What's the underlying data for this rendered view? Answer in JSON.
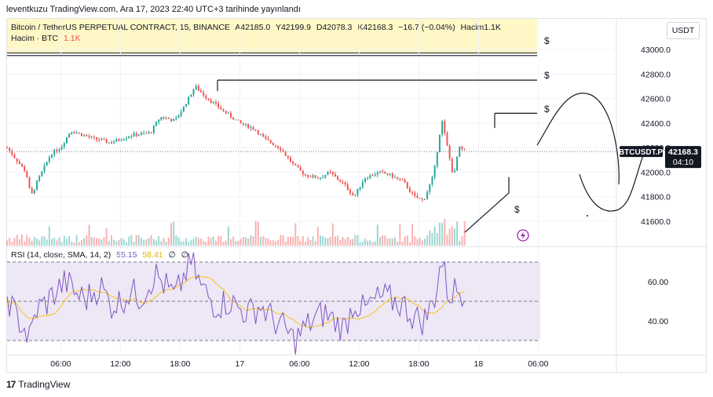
{
  "header": {
    "published": "leventkuzu TradingView.com, Ara 17, 2023 22:40 UTC+3 tarihinde yayınlandı"
  },
  "legend": {
    "title": "Bitcoin / TetherUS PERPETUAL CONTRACT, 15, BINANCE",
    "open": "A42185.0",
    "high": "Y42199.9",
    "low": "D42078.3",
    "close": "K42168.3",
    "change": "−16.7 (−0.04%)",
    "volume": "Hacim1.1K",
    "volume_label": "Hacim · BTC",
    "volume_value": "1.1K"
  },
  "currency_button": "USDT",
  "rsi": {
    "label": "RSI (14, close, SMA, 14, 2)",
    "value": "55.15",
    "sma": "58.41",
    "extra1": "∅",
    "extra2": "∅"
  },
  "footer": {
    "logo_mark": "17",
    "logo_text": "TradingView"
  },
  "colors": {
    "up": "#26a69a",
    "down": "#ef5350",
    "rsi_line": "#7e57c2",
    "rsi_sma": "#f5c518",
    "rsi_band": "#ede7f6",
    "legend_bg": "#fff7c6"
  },
  "chart_data": {
    "type": "candlestick",
    "symbol": "BTCUSDT.P",
    "interval": "15",
    "last_price": "42168.3",
    "countdown": "04:10",
    "ylim": [
      41450,
      43050
    ],
    "y_ticks": [
      "43000.0",
      "42800.0",
      "42600.0",
      "42400.0",
      "42200.0",
      "42000.0",
      "41800.0",
      "41600.0"
    ],
    "x_ticks": [
      "06:00",
      "12:00",
      "18:00",
      "17",
      "06:00",
      "12:00",
      "18:00",
      "18",
      "06:00"
    ],
    "x_tick_hours": [
      6,
      12,
      18,
      24,
      30,
      36,
      42,
      48,
      54
    ],
    "x_range_hours": [
      0.6,
      61
    ],
    "close_anchors": [
      [
        0.6,
        42200
      ],
      [
        2.5,
        42000
      ],
      [
        3.0,
        41800
      ],
      [
        3.5,
        41900
      ],
      [
        5.0,
        42150
      ],
      [
        6.0,
        42200
      ],
      [
        7.0,
        42340
      ],
      [
        9.0,
        42280
      ],
      [
        11.0,
        42240
      ],
      [
        13.0,
        42300
      ],
      [
        15.0,
        42320
      ],
      [
        16.0,
        42450
      ],
      [
        17.5,
        42420
      ],
      [
        18.5,
        42550
      ],
      [
        19.5,
        42700
      ],
      [
        20.5,
        42620
      ],
      [
        22.0,
        42520
      ],
      [
        24.0,
        42400
      ],
      [
        25.5,
        42350
      ],
      [
        26.5,
        42270
      ],
      [
        28.0,
        42200
      ],
      [
        29.5,
        42050
      ],
      [
        30.5,
        41980
      ],
      [
        32.0,
        41950
      ],
      [
        33.0,
        42000
      ],
      [
        34.5,
        41900
      ],
      [
        35.5,
        41800
      ],
      [
        36.5,
        41950
      ],
      [
        38.0,
        42000
      ],
      [
        39.0,
        41980
      ],
      [
        40.5,
        41920
      ],
      [
        41.5,
        41800
      ],
      [
        42.5,
        41770
      ],
      [
        43.5,
        41980
      ],
      [
        44.3,
        42430
      ],
      [
        45.0,
        42150
      ],
      [
        45.5,
        41950
      ],
      [
        46.0,
        42200
      ],
      [
        46.8,
        42168.3
      ]
    ],
    "rsi_ylim": [
      25,
      75
    ],
    "rsi_ticks": [
      "60.00",
      "40.00"
    ],
    "rsi_bands": [
      70,
      50,
      30
    ],
    "rsi_anchors": [
      [
        0.6,
        53
      ],
      [
        1.5,
        42
      ],
      [
        2.2,
        38
      ],
      [
        2.8,
        30
      ],
      [
        3.6,
        46
      ],
      [
        4.5,
        49
      ],
      [
        5.5,
        55
      ],
      [
        6.5,
        60
      ],
      [
        7.5,
        54
      ],
      [
        8.5,
        51
      ],
      [
        10.0,
        58
      ],
      [
        11.0,
        48
      ],
      [
        12.0,
        50
      ],
      [
        13.0,
        55
      ],
      [
        14.0,
        52
      ],
      [
        15.5,
        64
      ],
      [
        16.5,
        58
      ],
      [
        17.5,
        52
      ],
      [
        18.5,
        64
      ],
      [
        19.2,
        70
      ],
      [
        20.0,
        58
      ],
      [
        21.5,
        48
      ],
      [
        23.0,
        50
      ],
      [
        24.0,
        46
      ],
      [
        25.0,
        44
      ],
      [
        26.0,
        48
      ],
      [
        27.5,
        40
      ],
      [
        28.5,
        36
      ],
      [
        29.5,
        30
      ],
      [
        30.5,
        36
      ],
      [
        31.5,
        41
      ],
      [
        32.5,
        44
      ],
      [
        33.5,
        40
      ],
      [
        34.5,
        36
      ],
      [
        35.5,
        50
      ],
      [
        36.5,
        45
      ],
      [
        37.5,
        50
      ],
      [
        38.5,
        52
      ],
      [
        39.5,
        50
      ],
      [
        40.5,
        48
      ],
      [
        41.5,
        42
      ],
      [
        42.5,
        40
      ],
      [
        43.5,
        50
      ],
      [
        44.3,
        72
      ],
      [
        45.0,
        52
      ],
      [
        45.5,
        56
      ],
      [
        46.8,
        55
      ]
    ],
    "annotations": {
      "dollar_labels": [
        "$",
        "$",
        "$",
        "$",
        "$"
      ]
    }
  }
}
